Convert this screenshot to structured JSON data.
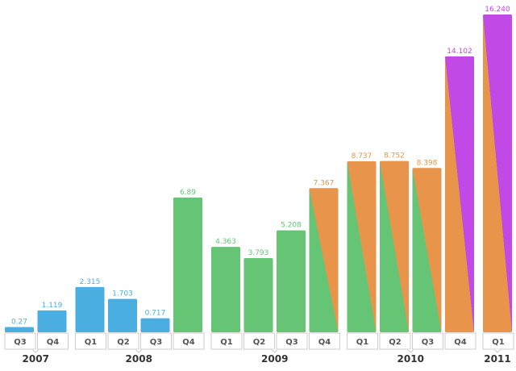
{
  "colors": {
    "blue": "#4aaee0",
    "green": "#66c575",
    "orange": "#e8944a",
    "purple": "#c14ae6",
    "axis_border": "#cccccc",
    "label_bg": "#ffffff"
  },
  "chart_data": {
    "type": "bar",
    "title": "",
    "xlabel": "",
    "ylabel": "",
    "grid": false,
    "ylim": [
      0,
      16.24
    ],
    "groups": [
      {
        "year": "2007",
        "bars": [
          {
            "q": "Q3",
            "value": 0.27,
            "label": "0.27",
            "color": "blue"
          },
          {
            "q": "Q4",
            "value": 1.119,
            "label": "1.119",
            "color": "blue"
          }
        ]
      },
      {
        "year": "2008",
        "bars": [
          {
            "q": "Q1",
            "value": 2.315,
            "label": "2.315",
            "color": "blue"
          },
          {
            "q": "Q2",
            "value": 1.703,
            "label": "1.703",
            "color": "blue"
          },
          {
            "q": "Q3",
            "value": 0.717,
            "label": "0.717",
            "color": "blue"
          },
          {
            "q": "Q4",
            "value": 6.89,
            "label": "6.89",
            "color": "green"
          }
        ]
      },
      {
        "year": "2009",
        "bars": [
          {
            "q": "Q1",
            "value": 4.363,
            "label": "4.363",
            "color": "green"
          },
          {
            "q": "Q2",
            "value": 3.793,
            "label": "3.793",
            "color": "green"
          },
          {
            "q": "Q3",
            "value": 5.208,
            "label": "5.208",
            "color": "green"
          },
          {
            "q": "Q4",
            "value": 7.367,
            "label": "7.367",
            "color": "orange",
            "gradient_from": "green"
          }
        ]
      },
      {
        "year": "2010",
        "bars": [
          {
            "q": "Q1",
            "value": 8.737,
            "label": "8.737",
            "color": "orange",
            "gradient_from": "green"
          },
          {
            "q": "Q2",
            "value": 8.752,
            "label": "8.752",
            "color": "orange",
            "gradient_from": "green"
          },
          {
            "q": "Q3",
            "value": 8.398,
            "label": "8.398",
            "color": "orange",
            "gradient_from": "green"
          },
          {
            "q": "Q4",
            "value": 14.102,
            "label": "14.102",
            "color": "purple",
            "gradient_from": "orange"
          }
        ]
      },
      {
        "year": "2011",
        "bars": [
          {
            "q": "Q1",
            "value": 16.24,
            "label": "16.240",
            "color": "purple",
            "gradient_from": "orange"
          }
        ]
      }
    ]
  }
}
